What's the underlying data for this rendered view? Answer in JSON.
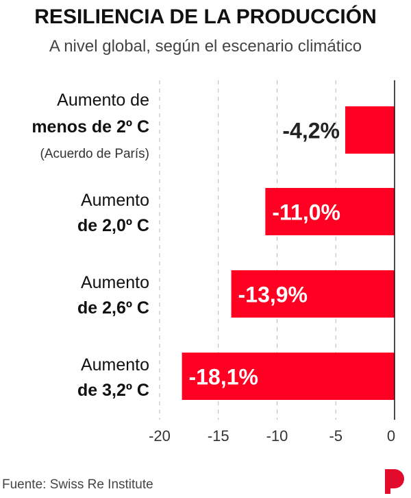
{
  "chart_data": {
    "type": "bar",
    "orientation": "horizontal",
    "title": "RESILIENCIA DE LA PRODUCCIÓN",
    "subtitle": "A nivel global, según el escenario climático",
    "categories": [
      {
        "line1": "Aumento de",
        "line2": "menos de 2º C",
        "line3": "(Acuerdo de París)"
      },
      {
        "line1": "Aumento",
        "line2": "de 2,0º C"
      },
      {
        "line1": "Aumento",
        "line2": "de 2,6º C"
      },
      {
        "line1": "Aumento",
        "line2": "de 3,2º C"
      }
    ],
    "values": [
      -4.2,
      -11.0,
      -13.9,
      -18.1
    ],
    "data_labels": [
      "-4,2%",
      "-11,0%",
      "-13,9%",
      "-18,1%"
    ],
    "xlim": [
      -20,
      0
    ],
    "xticks": [
      -20,
      -15,
      -10,
      -5,
      0
    ],
    "xtick_labels": [
      "-20",
      "-15",
      "-10",
      "-5",
      "0"
    ],
    "grid": true,
    "bar_color": "#ff0022",
    "source": "Fuente: Swiss Re Institute"
  },
  "logo_text": "P",
  "logo_color": "#e30b2b"
}
